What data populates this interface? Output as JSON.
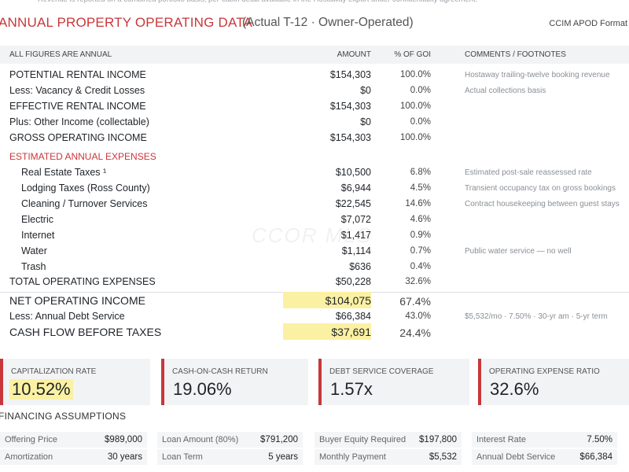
{
  "note": "Revenue is reported on a combined portfolio basis; per-cabin detail available in the Hostaway export under confidentiality agreement.",
  "header": {
    "title": "ANNUAL PROPERTY OPERATING DATA",
    "subtitle": "(Actual T-12 · Owner-Operated)",
    "format": "CCIM APOD Format"
  },
  "table": {
    "columns": [
      "ALL FIGURES ARE ANNUAL",
      "AMOUNT",
      "% OF GOI",
      "COMMENTS / FOOTNOTES"
    ],
    "income": [
      {
        "label": "POTENTIAL RENTAL INCOME",
        "amount": "$154,303",
        "pct": "100.0%",
        "comment": "Hostaway trailing-twelve booking revenue"
      },
      {
        "label": "Less: Vacancy & Credit Losses",
        "amount": "$0",
        "pct": "0.0%",
        "comment": "Actual collections basis"
      },
      {
        "label": "EFFECTIVE RENTAL INCOME",
        "amount": "$154,303",
        "pct": "100.0%"
      },
      {
        "label": "Plus: Other Income (collectable)",
        "amount": "$0",
        "pct": "0.0%"
      },
      {
        "label": "GROSS OPERATING INCOME",
        "amount": "$154,303",
        "pct": "100.0%"
      }
    ],
    "expenses": {
      "title": "ESTIMATED ANNUAL EXPENSES",
      "items": [
        {
          "label": "Real Estate Taxes ¹",
          "amount": "$10,500",
          "pct": "6.8%",
          "comment": "Estimated post-sale reassessed rate"
        },
        {
          "label": "Lodging Taxes (Ross County)",
          "amount": "$6,944",
          "pct": "4.5%",
          "comment": "Transient occupancy tax on gross bookings"
        },
        {
          "label": "Cleaning / Turnover Services",
          "amount": "$22,545",
          "pct": "14.6%",
          "comment": "Contract housekeeping between guest stays"
        },
        {
          "label": "Electric",
          "amount": "$7,072",
          "pct": "4.6%"
        },
        {
          "label": "Internet",
          "amount": "$1,417",
          "pct": "0.9%"
        },
        {
          "label": "Water",
          "amount": "$1,114",
          "pct": "0.7%",
          "comment": "Public water service — no well"
        },
        {
          "label": "Trash",
          "amount": "$636",
          "pct": "0.4%"
        }
      ],
      "total": {
        "label": "TOTAL OPERATING EXPENSES",
        "amount": "$50,228",
        "pct": "32.6%"
      }
    },
    "results": [
      {
        "label": "NET OPERATING INCOME",
        "amount": "$104,075",
        "pct": "67.4%"
      },
      {
        "label": "Less: Annual Debt Service",
        "amount": "$66,384",
        "pct": "43.0%",
        "comment": "$5,532/mo · 7.50% · 30-yr am · 5-yr term"
      },
      {
        "label": "CASH FLOW BEFORE TAXES",
        "amount": "$37,691",
        "pct": "24.4%"
      }
    ]
  },
  "watermark": "CCOR MLS",
  "metrics": [
    {
      "label": "CAPITALIZATION RATE",
      "value": "10.52%"
    },
    {
      "label": "CASH-ON-CASH RETURN",
      "value": "19.06%"
    },
    {
      "label": "DEBT SERVICE COVERAGE",
      "value": "1.57x"
    },
    {
      "label": "OPERATING EXPENSE RATIO",
      "value": "32.6%"
    }
  ],
  "financing": {
    "title": "FINANCING ASSUMPTIONS",
    "items": [
      {
        "label": "Offering Price",
        "value": "$989,000"
      },
      {
        "label": "Loan Amount (80%)",
        "value": "$791,200"
      },
      {
        "label": "Buyer Equity Required",
        "value": "$197,800"
      },
      {
        "label": "Interest Rate",
        "value": "7.50%"
      },
      {
        "label": "Amortization",
        "value": "30 years"
      },
      {
        "label": "Loan Term",
        "value": "5 years"
      },
      {
        "label": "Monthly Payment",
        "value": "$5,532"
      },
      {
        "label": "Annual Debt Service",
        "value": "$66,384"
      }
    ]
  }
}
